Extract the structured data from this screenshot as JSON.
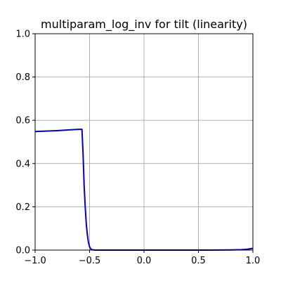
{
  "chart_data": {
    "type": "line",
    "title": "multiparam_log_inv for tilt (linearity)",
    "xlabel": "",
    "ylabel": "",
    "xlim": [
      -1.0,
      1.0
    ],
    "ylim": [
      0.0,
      1.0
    ],
    "grid": true,
    "x_ticks": [
      "−1.0",
      "−0.5",
      "0.0",
      "0.5",
      "1.0"
    ],
    "x_tick_values": [
      -1.0,
      -0.5,
      0.0,
      0.5,
      1.0
    ],
    "y_ticks": [
      "0.0",
      "0.2",
      "0.4",
      "0.6",
      "0.8",
      "1.0"
    ],
    "y_tick_values": [
      0.0,
      0.2,
      0.4,
      0.6,
      0.8,
      1.0
    ],
    "series": [
      {
        "color": "#0000cc",
        "x": [
          -1.0,
          -0.9,
          -0.8,
          -0.7,
          -0.6,
          -0.57,
          -0.56,
          -0.55,
          -0.54,
          -0.53,
          -0.52,
          -0.51,
          -0.5,
          -0.49,
          -0.48,
          -0.45,
          -0.4,
          -0.2,
          0.0,
          0.2,
          0.4,
          0.6,
          0.8,
          0.9,
          0.95,
          1.0
        ],
        "y": [
          0.548,
          0.55,
          0.552,
          0.555,
          0.558,
          0.558,
          0.45,
          0.3,
          0.2,
          0.12,
          0.07,
          0.035,
          0.015,
          0.006,
          0.002,
          0.0,
          0.0,
          0.0,
          0.0,
          0.0,
          0.0,
          0.0,
          0.001,
          0.002,
          0.004,
          0.008
        ]
      }
    ]
  }
}
